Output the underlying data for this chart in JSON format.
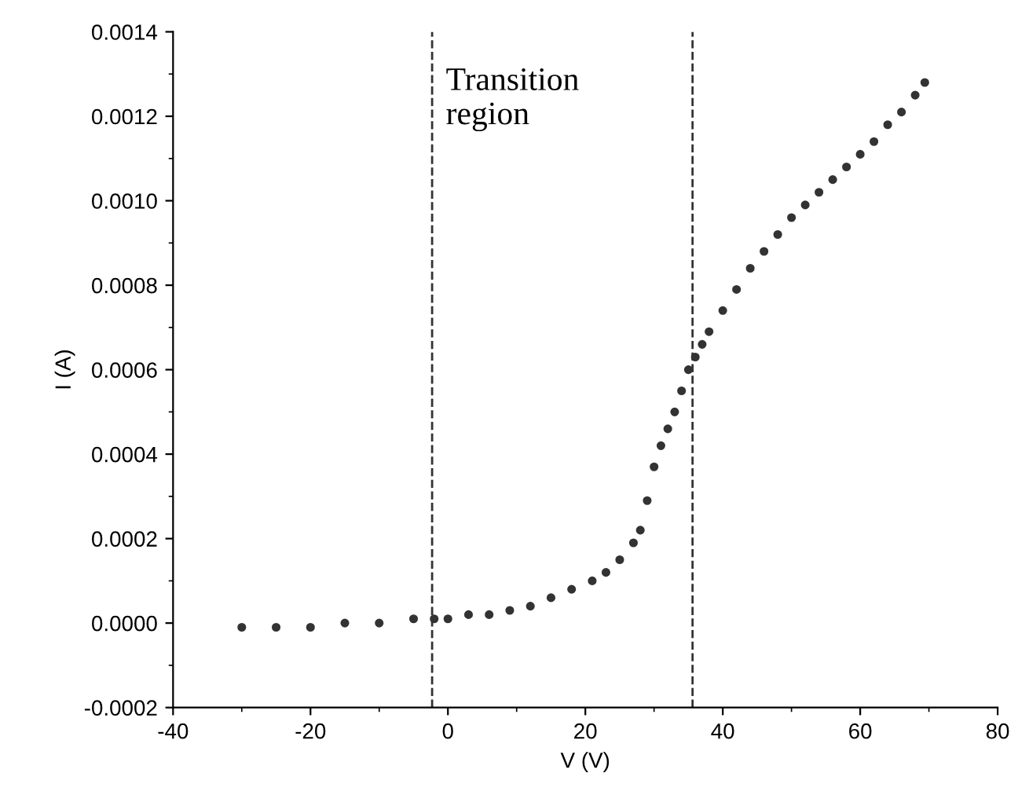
{
  "chart_data": {
    "type": "scatter",
    "xlabel": "V (V)",
    "ylabel": "I (A)",
    "x": [
      -30,
      -25,
      -20,
      -15,
      -10,
      -5,
      -2,
      0,
      3,
      6,
      9,
      12,
      15,
      18,
      21,
      23,
      25,
      27,
      28,
      29,
      30,
      31,
      32,
      33,
      34,
      35,
      36,
      37,
      38,
      40,
      42,
      44,
      46,
      48,
      50,
      52,
      54,
      56,
      58,
      60,
      62,
      64,
      66,
      68,
      69.4
    ],
    "series": [
      {
        "color": "#333333",
        "values": [
          -1e-05,
          -1e-05,
          -1e-05,
          0,
          0,
          1e-05,
          1e-05,
          1e-05,
          2e-05,
          2e-05,
          3e-05,
          4e-05,
          6e-05,
          8e-05,
          0.0001,
          0.00012,
          0.00015,
          0.00019,
          0.00022,
          0.00029,
          0.00037,
          0.00042,
          0.00046,
          0.0005,
          0.00055,
          0.0006,
          0.00063,
          0.00066,
          0.00069,
          0.00074,
          0.00079,
          0.00084,
          0.00088,
          0.00092,
          0.00096,
          0.00099,
          0.00102,
          0.00105,
          0.00108,
          0.00111,
          0.00114,
          0.00118,
          0.00121,
          0.00125,
          0.00128
        ]
      }
    ],
    "marker": "circle",
    "xlim": [
      -40,
      80
    ],
    "xticks": [
      -40,
      -20,
      0,
      20,
      40,
      60,
      80
    ],
    "ylim": [
      -0.0002,
      0.0014
    ],
    "yticks": [
      {
        "value": -0.0002,
        "label": "-0.0002"
      },
      {
        "value": 0,
        "label": "0.0000"
      },
      {
        "value": 0.0002,
        "label": "0.0002"
      },
      {
        "value": 0.0004,
        "label": "0.0004"
      },
      {
        "value": 0.0006,
        "label": "0.0006"
      },
      {
        "value": 0.0008,
        "label": "0.0008"
      },
      {
        "value": 0.001,
        "label": "0.0010"
      },
      {
        "value": 0.0012,
        "label": "0.0012"
      },
      {
        "value": 0.0014,
        "label": "0.0014"
      }
    ],
    "ref_lines": [
      {
        "axis": "x",
        "value": -2.3,
        "line_style": "dashed",
        "color": "#333333"
      },
      {
        "axis": "x",
        "value": 35.6,
        "line_style": "dashed",
        "color": "#333333"
      }
    ],
    "annotations": [
      "Transition\nregion"
    ],
    "grid": false,
    "legend": false
  }
}
